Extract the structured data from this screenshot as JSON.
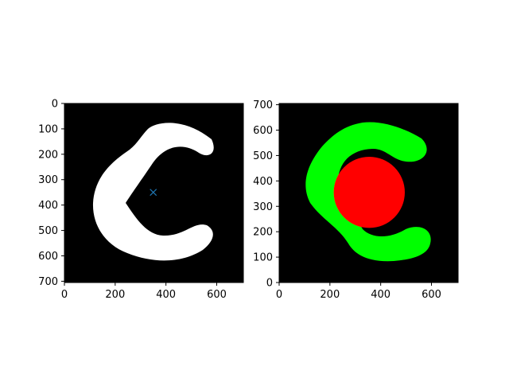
{
  "colors": {
    "background": "#000000",
    "shape": "#ffffff",
    "marker": "#1f77b4",
    "outside_region": "#00ff00",
    "overlap_region": "#ff0000",
    "excess_region": "#ffff00"
  },
  "chart_data": [
    {
      "type": "image",
      "title": "",
      "xlabel": "",
      "ylabel": "",
      "xlim": [
        0,
        705
      ],
      "ylim": [
        705,
        0
      ],
      "y_axis": "inverted",
      "xticks": [
        "0",
        "200",
        "400",
        "600"
      ],
      "yticks": [
        "0",
        "100",
        "200",
        "300",
        "400",
        "500",
        "600",
        "700"
      ],
      "content": "white C-shaped mask on black background",
      "marker": {
        "symbol": "x",
        "x": 350,
        "y": 350
      }
    },
    {
      "type": "image",
      "title": "",
      "xlabel": "",
      "ylabel": "",
      "xlim": [
        0,
        705
      ],
      "ylim": [
        0,
        705
      ],
      "y_axis": "normal",
      "xticks": [
        "0",
        "200",
        "400",
        "600"
      ],
      "yticks": [
        "0",
        "100",
        "200",
        "300",
        "400",
        "500",
        "600",
        "700"
      ],
      "content": "C-shaped mask (green) overlaid with circle (red), overlap region yellow",
      "circle": {
        "center_x": 355,
        "center_y": 355,
        "radius": 140
      }
    }
  ]
}
